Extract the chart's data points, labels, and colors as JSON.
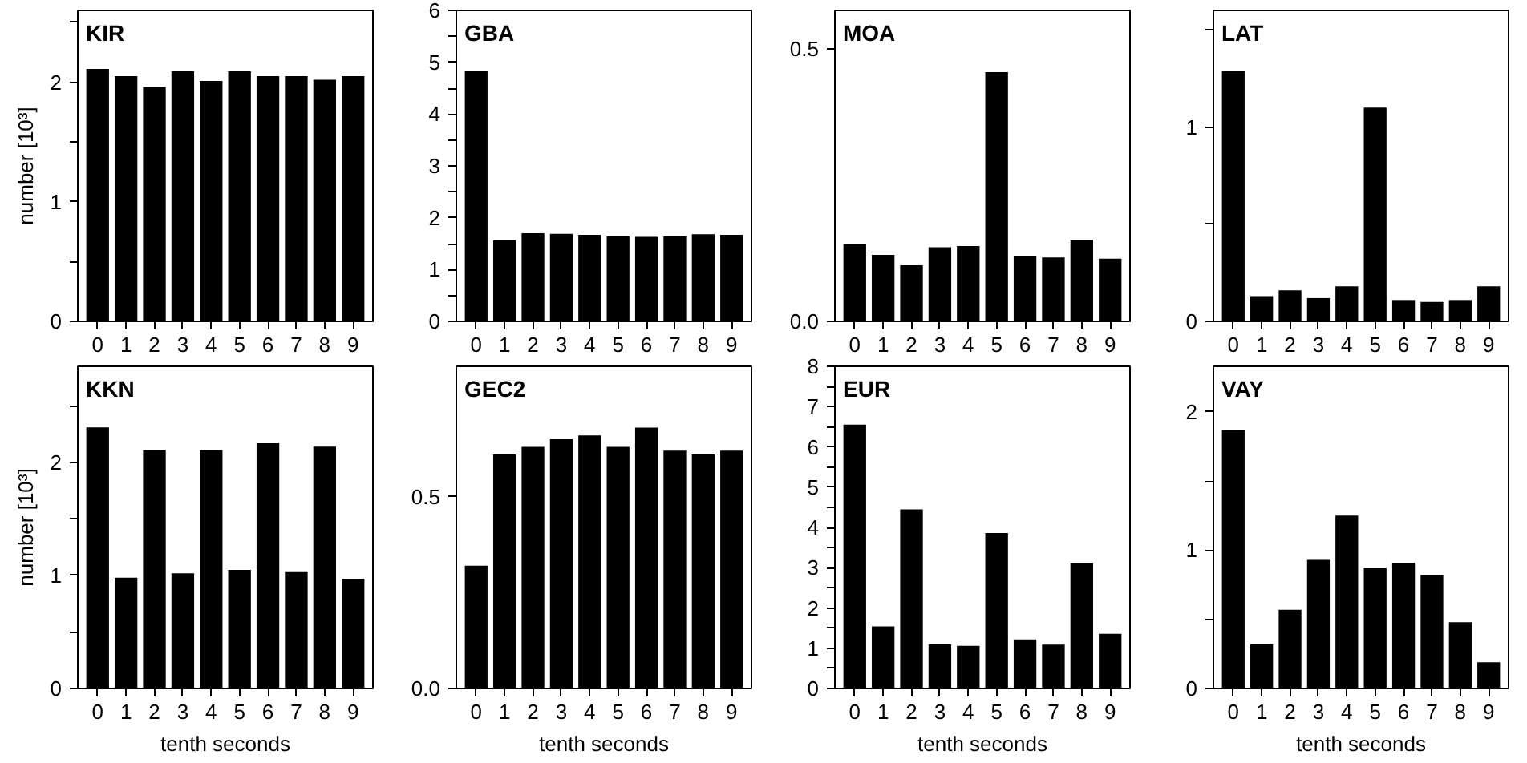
{
  "chart_data": [
    {
      "type": "bar",
      "title": "KIR",
      "ylabel": "number [10³]",
      "categories": [
        "0",
        "1",
        "2",
        "3",
        "4",
        "5",
        "6",
        "7",
        "8",
        "9"
      ],
      "color": "#000000",
      "values": [
        2.11,
        2.05,
        1.96,
        2.09,
        2.01,
        2.09,
        2.05,
        2.05,
        2.02,
        2.05
      ],
      "ylim": [
        0,
        2.6
      ],
      "yticks": [
        0,
        {
          "value": 0.5,
          "label": null
        },
        1,
        {
          "value": 1.5,
          "label": null
        },
        2,
        {
          "value": 2.5,
          "label": null
        }
      ],
      "grid": false
    },
    {
      "type": "bar",
      "title": "GBA",
      "categories": [
        "0",
        "1",
        "2",
        "3",
        "4",
        "5",
        "6",
        "7",
        "8",
        "9"
      ],
      "color": "#000000",
      "values": [
        4.84,
        1.56,
        1.7,
        1.69,
        1.67,
        1.64,
        1.63,
        1.64,
        1.68,
        1.67
      ],
      "ylim": [
        0,
        6
      ],
      "yticks": [
        0,
        {
          "value": 0.5,
          "label": null
        },
        1,
        {
          "value": 1.5,
          "label": null
        },
        2,
        {
          "value": 2.5,
          "label": null
        },
        3,
        {
          "value": 3.5,
          "label": null
        },
        4,
        {
          "value": 4.5,
          "label": null
        },
        5,
        {
          "value": 5.5,
          "label": null
        },
        6
      ],
      "grid": false
    },
    {
      "type": "bar",
      "title": "MOA",
      "categories": [
        "0",
        "1",
        "2",
        "3",
        "4",
        "5",
        "6",
        "7",
        "8",
        "9"
      ],
      "color": "#000000",
      "values": [
        0.142,
        0.122,
        0.103,
        0.136,
        0.138,
        0.457,
        0.119,
        0.117,
        0.15,
        0.115
      ],
      "ylim": [
        0,
        0.57
      ],
      "yticks": [
        {
          "value": 0,
          "label": "0.0"
        },
        0.5
      ],
      "grid": false
    },
    {
      "type": "bar",
      "title": "LAT",
      "categories": [
        "0",
        "1",
        "2",
        "3",
        "4",
        "5",
        "6",
        "7",
        "8",
        "9"
      ],
      "color": "#000000",
      "values": [
        1.29,
        0.13,
        0.16,
        0.12,
        0.18,
        1.1,
        0.11,
        0.1,
        0.11,
        0.18
      ],
      "ylim": [
        0,
        1.6
      ],
      "yticks": [
        0,
        {
          "value": 0.5,
          "label": null
        },
        1,
        {
          "value": 1.5,
          "label": null
        }
      ],
      "grid": false
    },
    {
      "type": "bar",
      "title": "KKN",
      "ylabel": "number [10³]",
      "xlabel": "tenth seconds",
      "categories": [
        "0",
        "1",
        "2",
        "3",
        "4",
        "5",
        "6",
        "7",
        "8",
        "9"
      ],
      "color": "#000000",
      "values": [
        2.31,
        0.98,
        2.11,
        1.02,
        2.11,
        1.05,
        2.17,
        1.03,
        2.14,
        0.97
      ],
      "ylim": [
        0,
        2.85
      ],
      "yticks": [
        0,
        {
          "value": 0.5,
          "label": null
        },
        1,
        {
          "value": 1.5,
          "label": null
        },
        2,
        {
          "value": 2.5,
          "label": null
        }
      ],
      "grid": false
    },
    {
      "type": "bar",
      "title": "GEC2",
      "xlabel": "tenth seconds",
      "categories": [
        "0",
        "1",
        "2",
        "3",
        "4",
        "5",
        "6",
        "7",
        "8",
        "9"
      ],
      "color": "#000000",
      "values": [
        0.32,
        0.61,
        0.63,
        0.65,
        0.66,
        0.63,
        0.68,
        0.62,
        0.61,
        0.62
      ],
      "ylim": [
        0,
        0.84
      ],
      "yticks": [
        {
          "value": 0,
          "label": "0.0"
        },
        0.5
      ],
      "grid": false
    },
    {
      "type": "bar",
      "title": "EUR",
      "xlabel": "tenth seconds",
      "categories": [
        "0",
        "1",
        "2",
        "3",
        "4",
        "5",
        "6",
        "7",
        "8",
        "9"
      ],
      "color": "#000000",
      "values": [
        6.55,
        1.54,
        4.45,
        1.1,
        1.06,
        3.86,
        1.22,
        1.09,
        3.11,
        1.36
      ],
      "ylim": [
        0,
        8
      ],
      "yticks": [
        0,
        {
          "value": 0.5,
          "label": null
        },
        1,
        {
          "value": 1.5,
          "label": null
        },
        2,
        {
          "value": 2.5,
          "label": null
        },
        3,
        {
          "value": 3.5,
          "label": null
        },
        4,
        {
          "value": 4.5,
          "label": null
        },
        5,
        {
          "value": 5.5,
          "label": null
        },
        6,
        {
          "value": 6.5,
          "label": null
        },
        7,
        {
          "value": 7.5,
          "label": null
        },
        8
      ],
      "grid": false
    },
    {
      "type": "bar",
      "title": "VAY",
      "xlabel": "tenth seconds",
      "categories": [
        "0",
        "1",
        "2",
        "3",
        "4",
        "5",
        "6",
        "7",
        "8",
        "9"
      ],
      "color": "#000000",
      "values": [
        1.87,
        0.32,
        0.57,
        0.93,
        1.25,
        0.87,
        0.91,
        0.82,
        0.48,
        0.19
      ],
      "ylim": [
        0,
        2.33
      ],
      "yticks": [
        0,
        {
          "value": 0.5,
          "label": null
        },
        1,
        {
          "value": 1.5,
          "label": null
        },
        2
      ],
      "grid": false
    }
  ]
}
